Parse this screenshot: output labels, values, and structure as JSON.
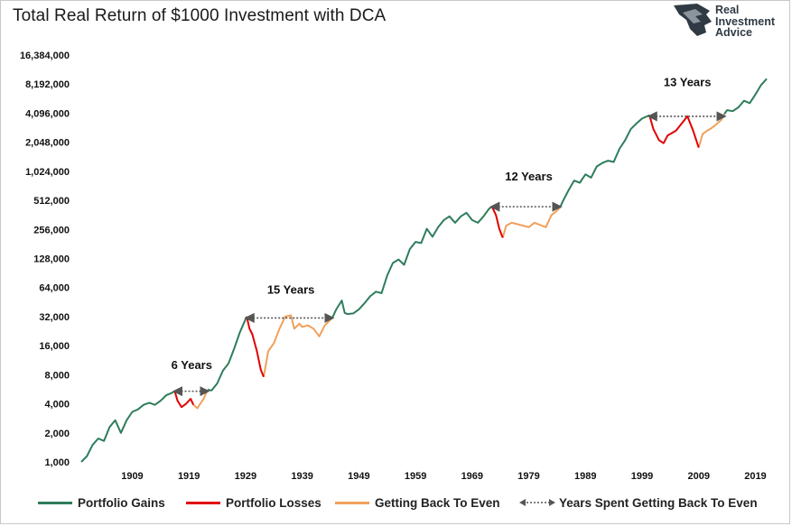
{
  "chart_data": {
    "type": "line",
    "title": "Total Real Return of $1000 Investment with DCA",
    "yscale": "log2",
    "ylim": [
      1000,
      16384000
    ],
    "xlim": [
      1900,
      2021
    ],
    "y_ticks": [
      {
        "value": 1000,
        "label": "1,000"
      },
      {
        "value": 2000,
        "label": "2,000"
      },
      {
        "value": 4000,
        "label": "4,000"
      },
      {
        "value": 8000,
        "label": "8,000"
      },
      {
        "value": 16000,
        "label": "16,000"
      },
      {
        "value": 32000,
        "label": "32,000"
      },
      {
        "value": 64000,
        "label": "64,000"
      },
      {
        "value": 128000,
        "label": "128,000"
      },
      {
        "value": 256000,
        "label": "256,000"
      },
      {
        "value": 512000,
        "label": "512,000"
      },
      {
        "value": 1024000,
        "label": "1,024,000"
      },
      {
        "value": 2048000,
        "label": "2,048,000"
      },
      {
        "value": 4096000,
        "label": "4,096,000"
      },
      {
        "value": 8192000,
        "label": "8,192,000"
      },
      {
        "value": 16384000,
        "label": "16,384,000"
      }
    ],
    "x_ticks": [
      "1909",
      "1919",
      "1929",
      "1939",
      "1949",
      "1959",
      "1969",
      "1979",
      "1989",
      "1999",
      "2009",
      "2019"
    ],
    "colors": {
      "gains": "#2e7d5b",
      "losses": "#e00000",
      "even": "#f0a05a",
      "arrow": "#555555"
    },
    "series": [
      {
        "name": "Portfolio Gains",
        "color": "#2e7d5b",
        "points": [
          [
            1900,
            1000
          ],
          [
            1901,
            1150
          ],
          [
            1902,
            1500
          ],
          [
            1903,
            1750
          ],
          [
            1904,
            1650
          ],
          [
            1905,
            2300
          ],
          [
            1906,
            2700
          ],
          [
            1907,
            2000
          ],
          [
            1908,
            2700
          ],
          [
            1909,
            3300
          ],
          [
            1910,
            3500
          ],
          [
            1911,
            3900
          ],
          [
            1912,
            4100
          ],
          [
            1913,
            3900
          ],
          [
            1914,
            4300
          ],
          [
            1915,
            4900
          ],
          [
            1916,
            5200
          ],
          [
            1916.5,
            5400
          ]
        ]
      },
      {
        "name": "Portfolio Gains",
        "color": "#2e7d5b",
        "points": [
          [
            1922.3,
            5600
          ],
          [
            1923,
            5500
          ],
          [
            1924,
            6500
          ],
          [
            1925,
            8800
          ],
          [
            1926,
            10500
          ],
          [
            1927,
            15000
          ],
          [
            1928,
            22000
          ],
          [
            1929.2,
            32000
          ]
        ]
      },
      {
        "name": "Portfolio Gains",
        "color": "#2e7d5b",
        "points": [
          [
            1944.3,
            31000
          ],
          [
            1945,
            38000
          ],
          [
            1946,
            47000
          ],
          [
            1946.5,
            35000
          ],
          [
            1947,
            34000
          ],
          [
            1948,
            34500
          ],
          [
            1949,
            38000
          ],
          [
            1950,
            44000
          ],
          [
            1951,
            52000
          ],
          [
            1952,
            58000
          ],
          [
            1953,
            56000
          ],
          [
            1954,
            85000
          ],
          [
            1955,
            115000
          ],
          [
            1956,
            125000
          ],
          [
            1957,
            110000
          ],
          [
            1958,
            160000
          ],
          [
            1959,
            190000
          ],
          [
            1960,
            185000
          ],
          [
            1961,
            260000
          ],
          [
            1962,
            215000
          ],
          [
            1963,
            270000
          ],
          [
            1964,
            320000
          ],
          [
            1965,
            350000
          ],
          [
            1966,
            300000
          ],
          [
            1967,
            350000
          ],
          [
            1968,
            380000
          ],
          [
            1969,
            320000
          ],
          [
            1970,
            300000
          ],
          [
            1971,
            350000
          ],
          [
            1972,
            420000
          ],
          [
            1972.5,
            440000
          ]
        ]
      },
      {
        "name": "Portfolio Gains",
        "color": "#2e7d5b",
        "points": [
          [
            1984.5,
            430000
          ],
          [
            1985,
            500000
          ],
          [
            1986,
            650000
          ],
          [
            1987,
            820000
          ],
          [
            1988,
            780000
          ],
          [
            1989,
            950000
          ],
          [
            1990,
            880000
          ],
          [
            1991,
            1150000
          ],
          [
            1992,
            1250000
          ],
          [
            1993,
            1320000
          ],
          [
            1994,
            1280000
          ],
          [
            1995,
            1750000
          ],
          [
            1996,
            2150000
          ],
          [
            1997,
            2800000
          ],
          [
            1998,
            3200000
          ],
          [
            1999,
            3600000
          ],
          [
            2000.3,
            3900000
          ]
        ]
      },
      {
        "name": "Portfolio Gains",
        "color": "#2e7d5b",
        "points": [
          [
            2013.5,
            4000000
          ],
          [
            2014,
            4400000
          ],
          [
            2015,
            4300000
          ],
          [
            2016,
            4700000
          ],
          [
            2017,
            5500000
          ],
          [
            2018,
            5200000
          ],
          [
            2019,
            6400000
          ],
          [
            2020,
            8000000
          ],
          [
            2021,
            9300000
          ]
        ]
      }
    ],
    "loss_series": [
      {
        "name": "Portfolio Losses",
        "color": "#e00000",
        "points": [
          [
            1916.5,
            5400
          ],
          [
            1917,
            4300
          ],
          [
            1917.7,
            3700
          ],
          [
            1918.5,
            4000
          ],
          [
            1919.3,
            4500
          ],
          [
            1919.8,
            3900
          ]
        ]
      },
      {
        "name": "Portfolio Losses",
        "color": "#e00000",
        "points": [
          [
            1929.2,
            32000
          ],
          [
            1929.7,
            24000
          ],
          [
            1930.2,
            21000
          ],
          [
            1931,
            14000
          ],
          [
            1931.7,
            9000
          ],
          [
            1932.2,
            7600
          ]
        ]
      },
      {
        "name": "Portfolio Losses",
        "color": "#e00000",
        "points": [
          [
            1972.5,
            440000
          ],
          [
            1973.2,
            360000
          ],
          [
            1973.8,
            260000
          ],
          [
            1974.4,
            210000
          ]
        ]
      },
      {
        "name": "Portfolio Losses",
        "color": "#e00000",
        "points": [
          [
            2000.3,
            3900000
          ],
          [
            2001,
            2800000
          ],
          [
            2002,
            2150000
          ],
          [
            2002.8,
            2000000
          ],
          [
            2003.5,
            2400000
          ],
          [
            2005,
            2700000
          ],
          [
            2007,
            3800000
          ],
          [
            2008,
            2700000
          ],
          [
            2009,
            1800000
          ]
        ]
      }
    ],
    "even_series": [
      {
        "name": "Getting Back To Even",
        "color": "#f0a05a",
        "points": [
          [
            1919.8,
            3900
          ],
          [
            1920.5,
            3600
          ],
          [
            1921,
            4000
          ],
          [
            1921.6,
            4500
          ],
          [
            1922.3,
            5600
          ]
        ]
      },
      {
        "name": "Getting Back To Even",
        "color": "#f0a05a",
        "points": [
          [
            1932.2,
            7600
          ],
          [
            1933,
            14000
          ],
          [
            1934,
            17000
          ],
          [
            1935,
            24000
          ],
          [
            1936,
            32000
          ],
          [
            1937,
            33000
          ],
          [
            1937.6,
            24000
          ],
          [
            1938.5,
            27000
          ],
          [
            1939,
            25000
          ],
          [
            1940,
            26000
          ],
          [
            1941,
            24000
          ],
          [
            1942,
            20000
          ],
          [
            1943,
            26000
          ],
          [
            1944.3,
            31000
          ]
        ]
      },
      {
        "name": "Getting Back To Even",
        "color": "#f0a05a",
        "points": [
          [
            1974.4,
            210000
          ],
          [
            1975,
            280000
          ],
          [
            1976,
            300000
          ],
          [
            1977,
            290000
          ],
          [
            1978,
            280000
          ],
          [
            1979,
            270000
          ],
          [
            1980,
            300000
          ],
          [
            1981,
            285000
          ],
          [
            1982,
            270000
          ],
          [
            1983,
            360000
          ],
          [
            1984,
            400000
          ],
          [
            1984.5,
            430000
          ]
        ]
      },
      {
        "name": "Getting Back To Even",
        "color": "#f0a05a",
        "points": [
          [
            2009,
            1800000
          ],
          [
            2009.7,
            2500000
          ],
          [
            2010.5,
            2700000
          ],
          [
            2011,
            2800000
          ],
          [
            2012,
            3100000
          ],
          [
            2013,
            3500000
          ],
          [
            2013.5,
            4000000
          ]
        ]
      }
    ],
    "arrows": [
      {
        "label": "6 Years",
        "x1": 1916.5,
        "x2": 1922.3,
        "y": 5400
      },
      {
        "label": "15 Years",
        "x1": 1929.2,
        "x2": 1944.3,
        "y": 31000
      },
      {
        "label": "12 Years",
        "x1": 1972.5,
        "x2": 1984.5,
        "y": 440000
      },
      {
        "label": "13 Years",
        "x1": 2000.3,
        "x2": 2013.5,
        "y": 3800000
      }
    ],
    "annotation_labels": [
      {
        "text": "6 Years",
        "x": 1919.5,
        "y": 10000
      },
      {
        "text": "15 Years",
        "x": 1937,
        "y": 60000
      },
      {
        "text": "12 Years",
        "x": 1979,
        "y": 900000
      },
      {
        "text": "13 Years",
        "x": 2007,
        "y": 8500000
      }
    ]
  },
  "legend": {
    "gains": "Portfolio Gains",
    "losses": "Portfolio Losses",
    "even": "Getting Back To Even",
    "arrow": "Years Spent Getting Back To Even"
  },
  "logo": {
    "line1": "Real",
    "line2": "Investment",
    "line3": "Advice"
  }
}
